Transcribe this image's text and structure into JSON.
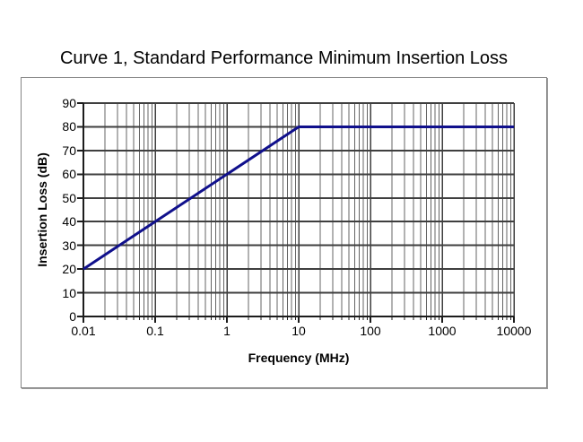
{
  "window": {
    "background": "#ffffff"
  },
  "chart_data": {
    "type": "line",
    "title": "Curve 1, Standard Performance Minimum Insertion Loss",
    "xlabel": "Frequency (MHz)",
    "ylabel": "Insertion Loss (dB)",
    "x_scale": "log",
    "xlim": [
      0.01,
      10000
    ],
    "ylim": [
      0,
      90
    ],
    "x_tick_labels": [
      "0.01",
      "0.1",
      "1",
      "10",
      "100",
      "1000",
      "10000"
    ],
    "x_tick_values": [
      0.01,
      0.1,
      1,
      10,
      100,
      1000,
      10000
    ],
    "y_tick_labels": [
      "0",
      "10",
      "20",
      "30",
      "40",
      "50",
      "60",
      "70",
      "80",
      "90"
    ],
    "y_tick_values": [
      0,
      10,
      20,
      30,
      40,
      50,
      60,
      70,
      80,
      90
    ],
    "grid": {
      "x_major": true,
      "x_minor": true,
      "y_major": true,
      "y_minor": false
    },
    "legend": "none",
    "series": [
      {
        "name": "Curve 1",
        "color": "#10108c",
        "points": [
          {
            "x": 0.01,
            "y": 20
          },
          {
            "x": 10,
            "y": 80
          },
          {
            "x": 10000,
            "y": 80
          }
        ]
      }
    ]
  },
  "colors": {
    "line": "#10108c",
    "grid_major": "#3f3f3f",
    "grid_minor": "#646464",
    "axis": "#1c1c1c",
    "frame_border": "#858585",
    "text": "#000000"
  }
}
